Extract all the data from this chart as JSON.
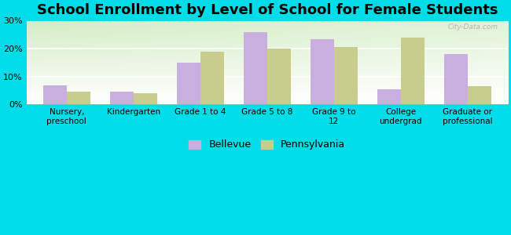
{
  "title": "School Enrollment by Level of School for Female Students",
  "categories": [
    "Nursery,\npreschool",
    "Kindergarten",
    "Grade 1 to 4",
    "Grade 5 to 8",
    "Grade 9 to\n12",
    "College\nundergrad",
    "Graduate or\nprofessional"
  ],
  "bellevue": [
    7.0,
    4.5,
    15.0,
    26.0,
    23.5,
    5.5,
    18.0
  ],
  "pennsylvania": [
    4.5,
    4.0,
    19.0,
    20.0,
    20.5,
    24.0,
    6.5
  ],
  "bellevue_color": "#c9aee0",
  "pennsylvania_color": "#c8cc8c",
  "background_outer": "#00dde8",
  "ylim": [
    0,
    30
  ],
  "yticks": [
    0,
    10,
    20,
    30
  ],
  "ytick_labels": [
    "0%",
    "10%",
    "20%",
    "30%"
  ],
  "title_fontsize": 13,
  "legend_labels": [
    "Bellevue",
    "Pennsylvania"
  ],
  "bar_width": 0.35,
  "watermark": "City-Data.com"
}
